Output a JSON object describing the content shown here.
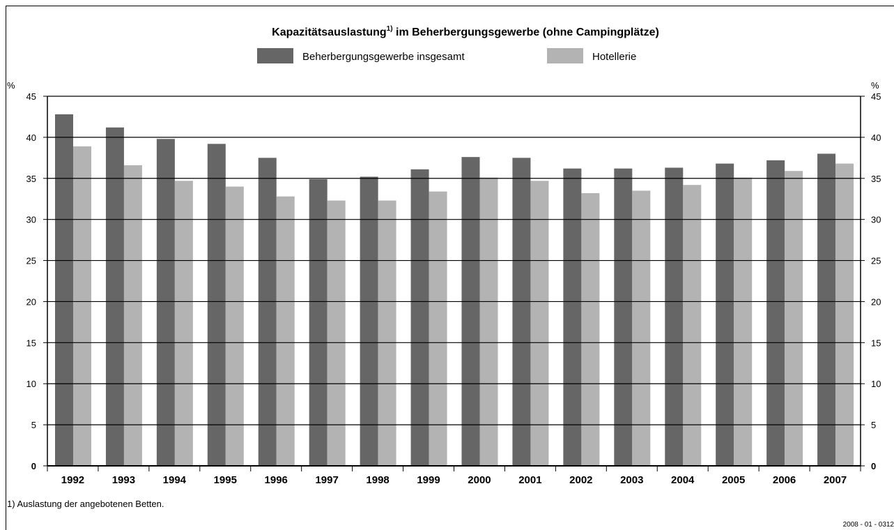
{
  "chart_data": {
    "type": "bar",
    "title": "Kapazitätsauslastung",
    "title_note_mark": "1)",
    "title_rest": " im Beherbergungsgewerbe (ohne Campingplätze)",
    "y_unit": "%",
    "y2_unit": "%",
    "categories": [
      "1992",
      "1993",
      "1994",
      "1995",
      "1996",
      "1997",
      "1998",
      "1999",
      "2000",
      "2001",
      "2002",
      "2003",
      "2004",
      "2005",
      "2006",
      "2007"
    ],
    "series": [
      {
        "name": "Beherbergungsgewerbe insgesamt",
        "color": "#666666",
        "values": [
          42.8,
          41.2,
          39.8,
          39.2,
          37.5,
          34.9,
          35.2,
          36.1,
          37.6,
          37.5,
          36.2,
          36.2,
          36.3,
          36.8,
          37.2,
          38.0
        ]
      },
      {
        "name": "Hotellerie",
        "color": "#b3b3b3",
        "values": [
          38.9,
          36.6,
          34.7,
          34.0,
          32.8,
          32.3,
          32.3,
          33.4,
          35.1,
          34.7,
          33.2,
          33.5,
          34.2,
          35.1,
          35.9,
          36.8
        ]
      }
    ],
    "ylim": [
      0,
      45
    ],
    "yticks": [
      0,
      5,
      10,
      15,
      20,
      25,
      30,
      35,
      40,
      45
    ],
    "y2lim": [
      0,
      45
    ],
    "y2ticks": [
      0,
      5,
      10,
      15,
      20,
      25,
      30,
      35,
      40,
      45
    ],
    "grid": true,
    "footnote": "1) Auslastung der angebotenen Betten.",
    "source_code": "2008 - 01 - 0312"
  }
}
